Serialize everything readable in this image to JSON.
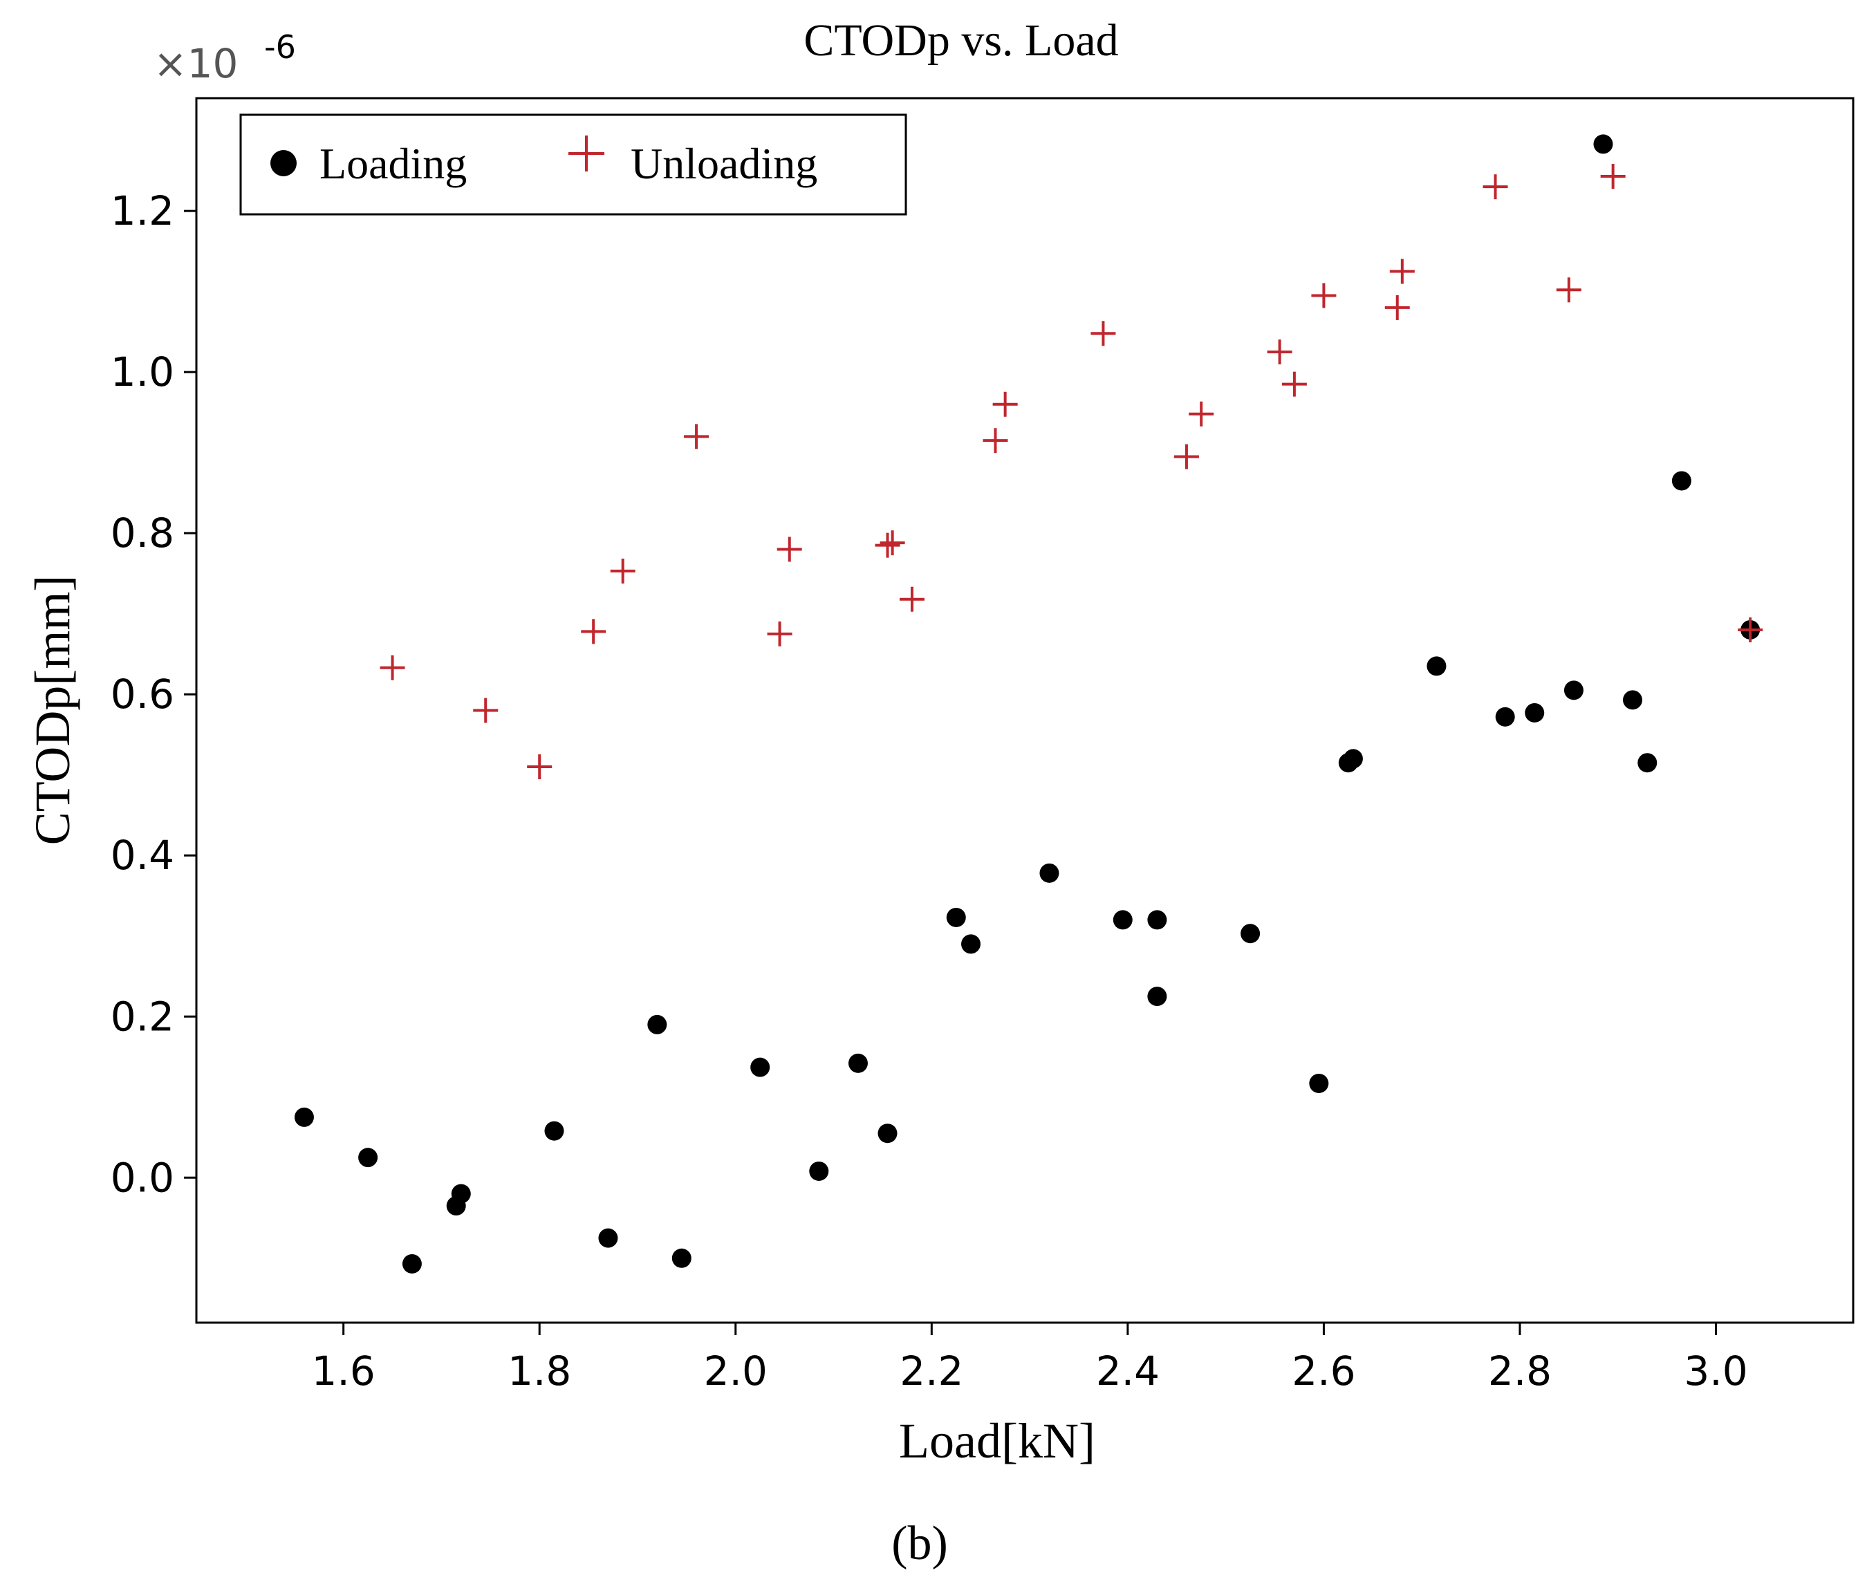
{
  "chart_data": {
    "type": "scatter",
    "title": "CTODp vs. Load",
    "xlabel": "Load[kN]",
    "ylabel": "CTODp[mm]",
    "caption": "(b)",
    "y_multiplier": {
      "base": "×10",
      "exponent": "-6"
    },
    "xlim": [
      1.45,
      3.14
    ],
    "ylim": [
      -0.18,
      1.34
    ],
    "xticks": [
      1.6,
      1.8,
      2.0,
      2.2,
      2.4,
      2.6,
      2.8,
      3.0
    ],
    "xtick_labels": [
      "1.6",
      "1.8",
      "2.0",
      "2.2",
      "2.4",
      "2.6",
      "2.8",
      "3.0"
    ],
    "yticks": [
      0.0,
      0.2,
      0.4,
      0.6,
      0.8,
      1.0,
      1.2
    ],
    "ytick_labels": [
      "0.0",
      "0.2",
      "0.4",
      "0.6",
      "0.8",
      "1.0",
      "1.2"
    ],
    "grid": false,
    "legend_position": "top-left",
    "colors": {
      "loading": "#000000",
      "unloading": "#c0262d",
      "axis": "#000000"
    },
    "series": [
      {
        "name": "Loading",
        "marker": "circle",
        "x": [
          1.56,
          1.625,
          1.67,
          1.715,
          1.72,
          1.815,
          1.87,
          1.92,
          1.945,
          2.025,
          2.085,
          2.125,
          2.155,
          2.225,
          2.24,
          2.32,
          2.395,
          2.43,
          2.43,
          2.525,
          2.595,
          2.625,
          2.63,
          2.715,
          2.785,
          2.815,
          2.855,
          2.885,
          2.915,
          2.93,
          2.965,
          3.035
        ],
        "y": [
          0.075,
          0.025,
          -0.107,
          -0.035,
          -0.02,
          0.058,
          -0.075,
          0.19,
          -0.1,
          0.137,
          0.008,
          0.142,
          0.055,
          0.323,
          0.29,
          0.378,
          0.32,
          0.32,
          0.225,
          0.303,
          0.117,
          0.515,
          0.52,
          0.635,
          0.572,
          0.577,
          0.605,
          1.283,
          0.593,
          0.515,
          0.865,
          0.68
        ]
      },
      {
        "name": "Unloading",
        "marker": "plus",
        "x": [
          1.65,
          1.745,
          1.8,
          1.855,
          1.885,
          1.96,
          2.045,
          2.055,
          2.155,
          2.16,
          2.18,
          2.265,
          2.275,
          2.375,
          2.46,
          2.475,
          2.555,
          2.57,
          2.6,
          2.675,
          2.68,
          2.775,
          2.85,
          2.895,
          3.035
        ],
        "y": [
          0.633,
          0.58,
          0.51,
          0.678,
          0.753,
          0.92,
          0.675,
          0.78,
          0.785,
          0.788,
          0.718,
          0.915,
          0.96,
          1.048,
          0.895,
          0.948,
          1.025,
          0.985,
          1.095,
          1.08,
          1.125,
          1.23,
          1.102,
          1.243,
          0.68
        ]
      }
    ]
  }
}
